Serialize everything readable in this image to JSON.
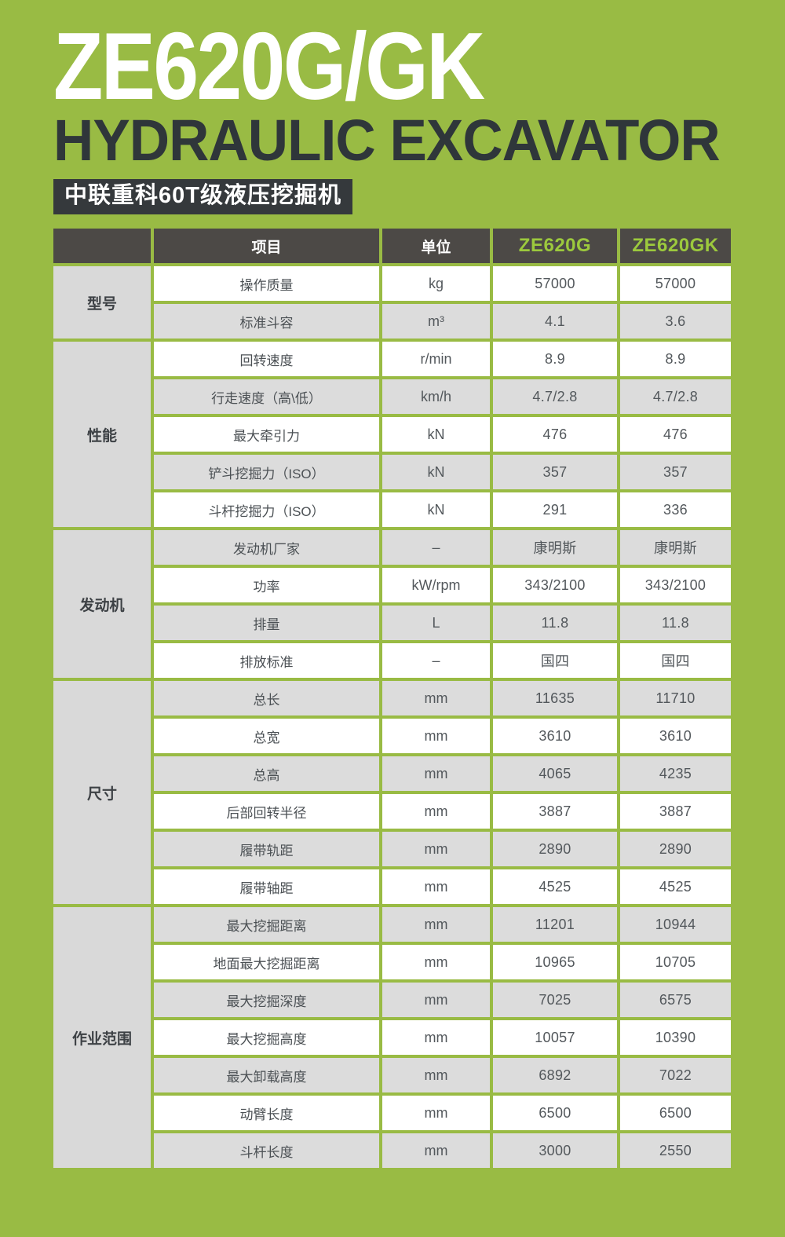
{
  "header": {
    "title": "ZE620G/GK",
    "subtitle": "HYDRAULIC EXCAVATOR",
    "badge": "中联重科60T级液压挖掘机"
  },
  "table": {
    "columns": {
      "item": "项目",
      "unit": "单位",
      "model_g": "ZE620G",
      "model_gk": "ZE620GK"
    },
    "groups": [
      {
        "label": "型号",
        "rows": [
          {
            "item": "操作质量",
            "unit": "kg",
            "ze620g": "57000",
            "ze620gk": "57000"
          },
          {
            "item": "标准斗容",
            "unit": "m³",
            "ze620g": "4.1",
            "ze620gk": "3.6"
          }
        ]
      },
      {
        "label": "性能",
        "rows": [
          {
            "item": "回转速度",
            "unit": "r/min",
            "ze620g": "8.9",
            "ze620gk": "8.9"
          },
          {
            "item": "行走速度（高\\低）",
            "unit": "km/h",
            "ze620g": "4.7/2.8",
            "ze620gk": "4.7/2.8"
          },
          {
            "item": "最大牵引力",
            "unit": "kN",
            "ze620g": "476",
            "ze620gk": "476"
          },
          {
            "item": "铲斗挖掘力（ISO）",
            "unit": "kN",
            "ze620g": "357",
            "ze620gk": "357"
          },
          {
            "item": "斗杆挖掘力（ISO）",
            "unit": "kN",
            "ze620g": "291",
            "ze620gk": "336"
          }
        ]
      },
      {
        "label": "发动机",
        "rows": [
          {
            "item": "发动机厂家",
            "unit": "–",
            "ze620g": "康明斯",
            "ze620gk": "康明斯"
          },
          {
            "item": "功率",
            "unit": "kW/rpm",
            "ze620g": "343/2100",
            "ze620gk": "343/2100"
          },
          {
            "item": "排量",
            "unit": "L",
            "ze620g": "11.8",
            "ze620gk": "11.8"
          },
          {
            "item": "排放标准",
            "unit": "–",
            "ze620g": "国四",
            "ze620gk": "国四"
          }
        ]
      },
      {
        "label": "尺寸",
        "rows": [
          {
            "item": "总长",
            "unit": "mm",
            "ze620g": "11635",
            "ze620gk": "11710"
          },
          {
            "item": "总宽",
            "unit": "mm",
            "ze620g": "3610",
            "ze620gk": "3610"
          },
          {
            "item": "总高",
            "unit": "mm",
            "ze620g": "4065",
            "ze620gk": "4235"
          },
          {
            "item": "后部回转半径",
            "unit": "mm",
            "ze620g": "3887",
            "ze620gk": "3887"
          },
          {
            "item": "履带轨距",
            "unit": "mm",
            "ze620g": "2890",
            "ze620gk": "2890"
          },
          {
            "item": "履带轴距",
            "unit": "mm",
            "ze620g": "4525",
            "ze620gk": "4525"
          }
        ]
      },
      {
        "label": "作业范围",
        "rows": [
          {
            "item": "最大挖掘距离",
            "unit": "mm",
            "ze620g": "11201",
            "ze620gk": "10944"
          },
          {
            "item": "地面最大挖掘距离",
            "unit": "mm",
            "ze620g": "10965",
            "ze620gk": "10705"
          },
          {
            "item": "最大挖掘深度",
            "unit": "mm",
            "ze620g": "7025",
            "ze620gk": "6575"
          },
          {
            "item": "最大挖掘高度",
            "unit": "mm",
            "ze620g": "10057",
            "ze620gk": "10390"
          },
          {
            "item": "最大卸载高度",
            "unit": "mm",
            "ze620g": "6892",
            "ze620gk": "7022"
          },
          {
            "item": "动臂长度",
            "unit": "mm",
            "ze620g": "6500",
            "ze620gk": "6500"
          },
          {
            "item": "斗杆长度",
            "unit": "mm",
            "ze620g": "3000",
            "ze620gk": "2550"
          }
        ]
      }
    ]
  },
  "colors": {
    "page_background": "#99bb44",
    "header_bar_bg": "#4c4946",
    "model_text_green": "#9cc93d",
    "badge_bg": "#35393c",
    "subtitle_text": "#2f363a",
    "group_cell_bg": "#d9d9d9",
    "row_white": "#ffffff",
    "row_grey": "#dcdcdc"
  }
}
